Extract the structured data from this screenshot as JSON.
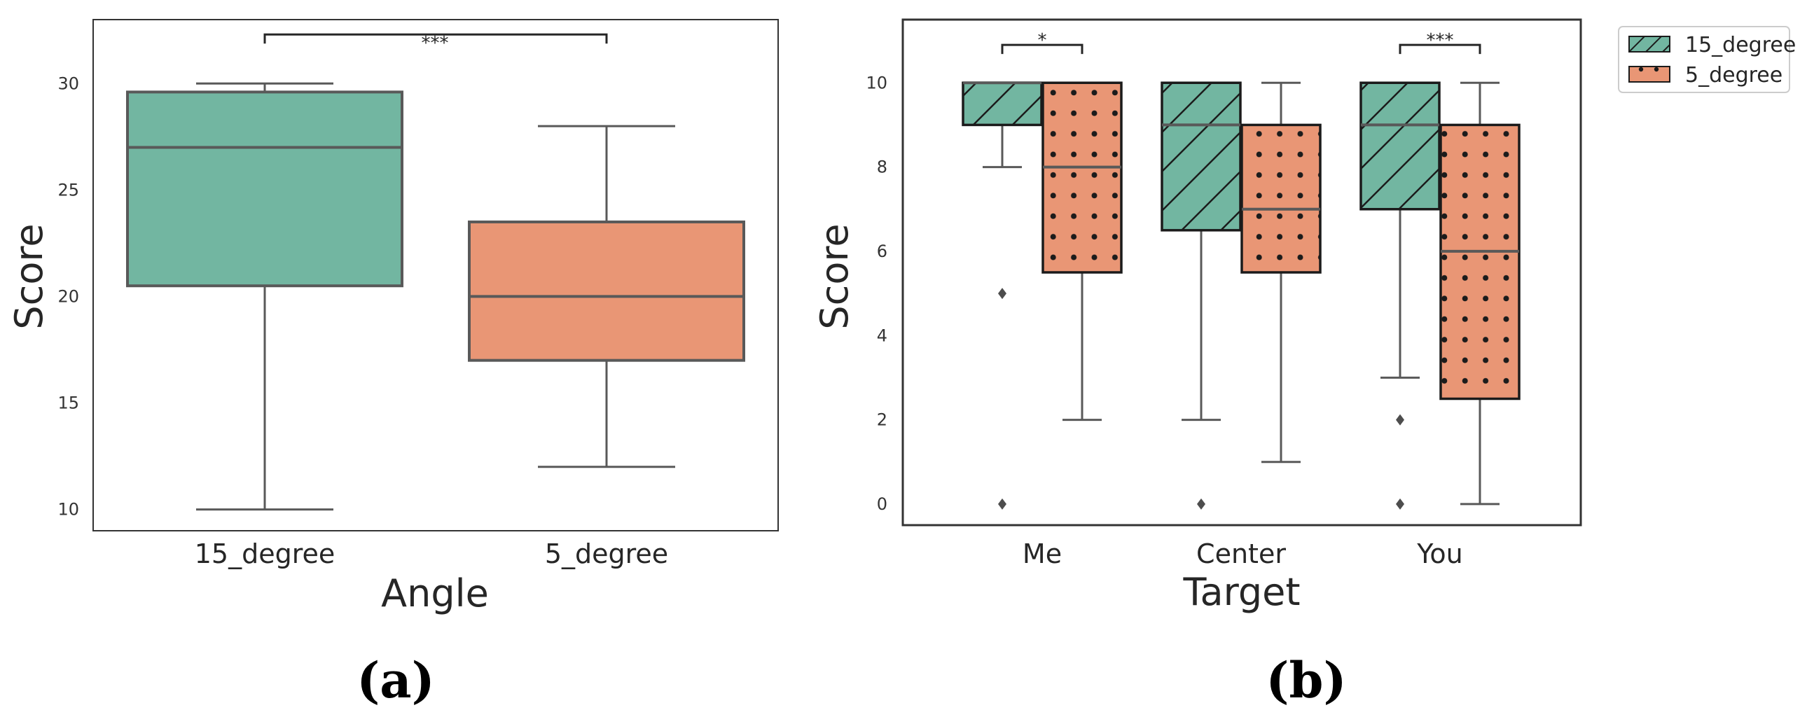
{
  "chart_data": [
    {
      "type": "box",
      "panel_label": "(a)",
      "xlabel": "Angle",
      "ylabel": "Score",
      "ylim": [
        9,
        33
      ],
      "yticks": [
        10,
        15,
        20,
        25,
        30
      ],
      "categories": [
        "15_degree",
        "5_degree"
      ],
      "boxes": [
        {
          "category": "15_degree",
          "color": "#72b6a1",
          "whisker_low": 10,
          "q1": 20.5,
          "median": 27,
          "q3": 29.6,
          "whisker_high": 30,
          "outliers": []
        },
        {
          "category": "5_degree",
          "color": "#e99675",
          "whisker_low": 12,
          "q1": 17,
          "median": 20,
          "q3": 23.5,
          "whisker_high": 28,
          "outliers": []
        }
      ],
      "significance": [
        {
          "from": 0,
          "to": 1,
          "label": "***",
          "y": 32.3
        }
      ]
    },
    {
      "type": "box",
      "panel_label": "(b)",
      "xlabel": "Target",
      "ylabel": "Score",
      "ylim": [
        -0.5,
        11.5
      ],
      "yticks": [
        0,
        2,
        4,
        6,
        8,
        10
      ],
      "categories": [
        "Me",
        "Center",
        "You"
      ],
      "legend": {
        "position": "outside-top-right",
        "entries": [
          {
            "label": "15_degree",
            "color": "#72b6a1",
            "pattern": "hatch"
          },
          {
            "label": "5_degree",
            "color": "#e99675",
            "pattern": "dots"
          }
        ]
      },
      "series": [
        {
          "name": "15_degree",
          "color": "#72b6a1",
          "pattern": "hatch",
          "boxes": [
            {
              "category": "Me",
              "whisker_low": 8,
              "q1": 9,
              "median": 10,
              "q3": 10,
              "whisker_high": 10,
              "outliers": [
                5,
                0
              ]
            },
            {
              "category": "Center",
              "whisker_low": 2,
              "q1": 6.5,
              "median": 9,
              "q3": 10,
              "whisker_high": 10,
              "outliers": [
                0
              ]
            },
            {
              "category": "You",
              "whisker_low": 3,
              "q1": 7,
              "median": 9,
              "q3": 10,
              "whisker_high": 10,
              "outliers": [
                2,
                0
              ]
            }
          ]
        },
        {
          "name": "5_degree",
          "color": "#e99675",
          "pattern": "dots",
          "boxes": [
            {
              "category": "Me",
              "whisker_low": 2,
              "q1": 5.5,
              "median": 8,
              "q3": 10,
              "whisker_high": 10,
              "outliers": []
            },
            {
              "category": "Center",
              "whisker_low": 1,
              "q1": 5.5,
              "median": 7,
              "q3": 9,
              "whisker_high": 10,
              "outliers": []
            },
            {
              "category": "You",
              "whisker_low": 0,
              "q1": 2.5,
              "median": 6,
              "q3": 9,
              "whisker_high": 10,
              "outliers": []
            }
          ]
        }
      ],
      "significance": [
        {
          "category": "Me",
          "label": "*",
          "y": 10.9
        },
        {
          "category": "You",
          "label": "***",
          "y": 10.9
        }
      ]
    }
  ]
}
